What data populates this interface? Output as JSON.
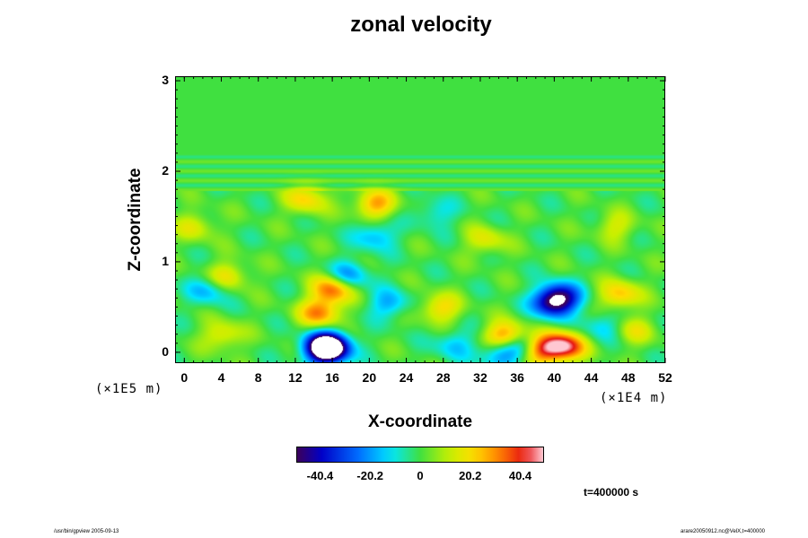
{
  "chart_data": {
    "type": "heatmap",
    "title": "zonal velocity",
    "xlabel": "X-coordinate",
    "ylabel": "Z-coordinate",
    "x_scale_note": "(×1E4 m)",
    "z_scale_note": "(×1E5 m)",
    "xlim": [
      -1,
      52
    ],
    "zlim": [
      -0.12,
      3.05
    ],
    "x_ticks": [
      "0",
      "4",
      "8",
      "12",
      "16",
      "20",
      "24",
      "28",
      "32",
      "36",
      "40",
      "44",
      "48",
      "52"
    ],
    "z_ticks": [
      "0",
      "1",
      "2",
      "3"
    ],
    "colorbar_ticks": [
      "-40.4",
      "-20.2",
      "0",
      "20.2",
      "40.4"
    ],
    "colorbar_range": [
      -50,
      50
    ],
    "background_value": 0,
    "features": [
      {
        "x": 15.5,
        "z": 0.05,
        "value": -55
      },
      {
        "x": 15.0,
        "z": 0.08,
        "value": -40
      },
      {
        "x": 40.5,
        "z": 0.62,
        "value": -40
      },
      {
        "x": 39.5,
        "z": 0.55,
        "value": -30
      },
      {
        "x": 14.5,
        "z": 0.45,
        "value": 32
      },
      {
        "x": 16.0,
        "z": 0.72,
        "value": 38
      },
      {
        "x": 41.0,
        "z": 0.08,
        "value": 45
      },
      {
        "x": 38.5,
        "z": 0.05,
        "value": 35
      },
      {
        "x": 34.7,
        "z": 0.18,
        "value": 42
      },
      {
        "x": 2.5,
        "z": 0.7,
        "value": -18
      },
      {
        "x": 17.5,
        "z": 0.85,
        "value": -25
      },
      {
        "x": 20.5,
        "z": 1.3,
        "value": -18
      },
      {
        "x": 22.0,
        "z": 0.55,
        "value": -18
      },
      {
        "x": 34.0,
        "z": 0.0,
        "value": -22
      },
      {
        "x": 36.0,
        "z": 0.1,
        "value": -25
      },
      {
        "x": 20.5,
        "z": 1.65,
        "value": 28
      },
      {
        "x": 13.0,
        "z": 1.7,
        "value": 22
      },
      {
        "x": 4.5,
        "z": 0.85,
        "value": 20
      },
      {
        "x": 4.0,
        "z": 0.2,
        "value": 18
      },
      {
        "x": 27.5,
        "z": 0.5,
        "value": 22
      },
      {
        "x": 47.0,
        "z": 0.65,
        "value": 25
      },
      {
        "x": 48.5,
        "z": 0.25,
        "value": 15
      },
      {
        "x": 46.5,
        "z": 1.4,
        "value": 14
      },
      {
        "x": 1.0,
        "z": 1.4,
        "value": 15
      },
      {
        "x": 32.5,
        "z": 1.25,
        "value": 16
      },
      {
        "x": 27.0,
        "z": 1.55,
        "value": -12
      },
      {
        "x": 45.0,
        "z": 0.3,
        "value": -14
      },
      {
        "x": 29.0,
        "z": 0.1,
        "value": -15
      }
    ],
    "time_label": "t=400000 s"
  },
  "footer": {
    "left": "/usr/bin/gpview 2005-09-13",
    "right": "arare20050912.nc@VelX,t=400000"
  }
}
